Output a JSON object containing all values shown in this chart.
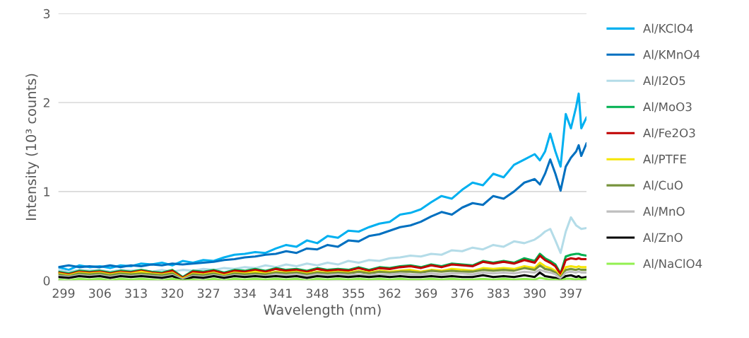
{
  "chart_data": {
    "type": "line",
    "xlabel": "Wavelength (nm)",
    "ylabel": "Intensity (10³ counts)",
    "x": [
      298,
      300,
      302,
      304,
      306,
      308,
      310,
      312,
      314,
      316,
      318,
      320,
      322,
      324,
      326,
      328,
      330,
      332,
      334,
      336,
      338,
      340,
      342,
      344,
      346,
      348,
      350,
      352,
      354,
      356,
      358,
      360,
      362,
      364,
      366,
      368,
      370,
      372,
      374,
      376,
      378,
      380,
      382,
      384,
      386,
      388,
      390,
      391,
      392,
      393,
      394,
      395,
      396,
      397,
      398,
      398.5,
      399,
      400
    ],
    "xlim": [
      298,
      400
    ],
    "xticks": [
      299,
      306,
      313,
      320,
      327,
      334,
      341,
      348,
      355,
      362,
      369,
      376,
      383,
      390,
      397
    ],
    "ylim": [
      0,
      3
    ],
    "yticks": [
      0,
      1,
      2,
      3
    ],
    "grid": "y",
    "legend": "right",
    "marker": "none",
    "line_style": "solid",
    "series": [
      {
        "name": "Al/KClO4",
        "color": "#00b0f0",
        "values": [
          0.15,
          0.12,
          0.17,
          0.15,
          0.16,
          0.14,
          0.17,
          0.16,
          0.19,
          0.18,
          0.2,
          0.17,
          0.22,
          0.2,
          0.23,
          0.22,
          0.26,
          0.29,
          0.3,
          0.32,
          0.31,
          0.36,
          0.4,
          0.38,
          0.45,
          0.42,
          0.5,
          0.48,
          0.56,
          0.55,
          0.6,
          0.64,
          0.66,
          0.74,
          0.76,
          0.8,
          0.88,
          0.95,
          0.92,
          1.02,
          1.1,
          1.07,
          1.2,
          1.16,
          1.3,
          1.36,
          1.42,
          1.35,
          1.45,
          1.65,
          1.45,
          1.28,
          1.87,
          1.71,
          1.95,
          2.1,
          1.71,
          1.83
        ]
      },
      {
        "name": "Al/KMnO4",
        "color": "#0070c0",
        "values": [
          0.15,
          0.17,
          0.15,
          0.16,
          0.15,
          0.17,
          0.15,
          0.17,
          0.16,
          0.18,
          0.17,
          0.19,
          0.18,
          0.19,
          0.2,
          0.21,
          0.23,
          0.24,
          0.26,
          0.27,
          0.29,
          0.3,
          0.33,
          0.31,
          0.36,
          0.35,
          0.4,
          0.38,
          0.45,
          0.44,
          0.5,
          0.52,
          0.56,
          0.6,
          0.62,
          0.66,
          0.72,
          0.77,
          0.74,
          0.82,
          0.87,
          0.85,
          0.95,
          0.92,
          1.0,
          1.1,
          1.14,
          1.08,
          1.2,
          1.36,
          1.2,
          1.01,
          1.28,
          1.38,
          1.45,
          1.52,
          1.4,
          1.54
        ]
      },
      {
        "name": "Al/I2O5",
        "color": "#b4dce8",
        "values": [
          0.12,
          0.1,
          0.12,
          0.11,
          0.12,
          0.1,
          0.12,
          0.11,
          0.12,
          0.1,
          0.12,
          0.1,
          0.12,
          0.11,
          0.13,
          0.12,
          0.14,
          0.13,
          0.15,
          0.14,
          0.17,
          0.15,
          0.18,
          0.16,
          0.19,
          0.17,
          0.2,
          0.18,
          0.22,
          0.2,
          0.23,
          0.22,
          0.25,
          0.26,
          0.28,
          0.27,
          0.3,
          0.29,
          0.34,
          0.33,
          0.37,
          0.35,
          0.4,
          0.38,
          0.44,
          0.42,
          0.46,
          0.5,
          0.55,
          0.58,
          0.45,
          0.31,
          0.55,
          0.71,
          0.62,
          0.6,
          0.58,
          0.59
        ]
      },
      {
        "name": "Al/MoO3",
        "color": "#00b050",
        "values": [
          0.1,
          0.08,
          0.11,
          0.1,
          0.11,
          0.09,
          0.11,
          0.1,
          0.12,
          0.1,
          0.09,
          0.12,
          0.04,
          0.11,
          0.1,
          0.12,
          0.09,
          0.12,
          0.11,
          0.13,
          0.11,
          0.14,
          0.12,
          0.13,
          0.11,
          0.14,
          0.12,
          0.13,
          0.12,
          0.15,
          0.12,
          0.15,
          0.14,
          0.16,
          0.17,
          0.15,
          0.18,
          0.16,
          0.19,
          0.18,
          0.17,
          0.22,
          0.2,
          0.22,
          0.2,
          0.25,
          0.22,
          0.3,
          0.25,
          0.22,
          0.18,
          0.08,
          0.27,
          0.29,
          0.3,
          0.3,
          0.29,
          0.28
        ]
      },
      {
        "name": "Al/Fe2O3",
        "color": "#c00000",
        "values": [
          0.09,
          0.07,
          0.1,
          0.09,
          0.1,
          0.08,
          0.1,
          0.09,
          0.11,
          0.09,
          0.08,
          0.11,
          0.03,
          0.1,
          0.09,
          0.11,
          0.08,
          0.11,
          0.1,
          0.12,
          0.1,
          0.13,
          0.11,
          0.12,
          0.1,
          0.13,
          0.11,
          0.12,
          0.11,
          0.14,
          0.11,
          0.14,
          0.13,
          0.15,
          0.16,
          0.14,
          0.17,
          0.15,
          0.18,
          0.17,
          0.16,
          0.21,
          0.19,
          0.21,
          0.19,
          0.23,
          0.2,
          0.28,
          0.23,
          0.2,
          0.16,
          0.07,
          0.23,
          0.25,
          0.24,
          0.25,
          0.24,
          0.24
        ]
      },
      {
        "name": "Al/PTFE",
        "color": "#f5e600",
        "values": [
          0.08,
          0.06,
          0.09,
          0.08,
          0.09,
          0.07,
          0.09,
          0.08,
          0.1,
          0.08,
          0.07,
          0.09,
          0.02,
          0.08,
          0.07,
          0.09,
          0.06,
          0.09,
          0.08,
          0.1,
          0.08,
          0.1,
          0.09,
          0.1,
          0.08,
          0.1,
          0.09,
          0.1,
          0.09,
          0.11,
          0.09,
          0.11,
          0.1,
          0.11,
          0.12,
          0.1,
          0.12,
          0.11,
          0.13,
          0.12,
          0.11,
          0.14,
          0.13,
          0.14,
          0.13,
          0.16,
          0.14,
          0.2,
          0.16,
          0.14,
          0.11,
          0.04,
          0.15,
          0.16,
          0.15,
          0.16,
          0.15,
          0.15
        ]
      },
      {
        "name": "Al/CuO",
        "color": "#77933c",
        "values": [
          0.07,
          0.05,
          0.08,
          0.07,
          0.08,
          0.06,
          0.08,
          0.07,
          0.08,
          0.07,
          0.06,
          0.08,
          0.01,
          0.07,
          0.06,
          0.08,
          0.05,
          0.08,
          0.07,
          0.08,
          0.07,
          0.09,
          0.08,
          0.09,
          0.07,
          0.09,
          0.08,
          0.09,
          0.08,
          0.1,
          0.08,
          0.1,
          0.09,
          0.1,
          0.1,
          0.09,
          0.11,
          0.1,
          0.11,
          0.1,
          0.1,
          0.12,
          0.11,
          0.12,
          0.11,
          0.14,
          0.12,
          0.17,
          0.13,
          0.12,
          0.09,
          0.03,
          0.12,
          0.13,
          0.12,
          0.13,
          0.12,
          0.12
        ]
      },
      {
        "name": "Al/MnO",
        "color": "#bfbfbf",
        "values": [
          0.05,
          0.04,
          0.06,
          0.05,
          0.06,
          0.04,
          0.06,
          0.05,
          0.06,
          0.05,
          0.04,
          0.06,
          0.01,
          0.05,
          0.04,
          0.06,
          0.04,
          0.06,
          0.05,
          0.06,
          0.05,
          0.07,
          0.06,
          0.07,
          0.05,
          0.07,
          0.06,
          0.07,
          0.06,
          0.07,
          0.06,
          0.07,
          0.07,
          0.08,
          0.07,
          0.07,
          0.08,
          0.07,
          0.08,
          0.08,
          0.07,
          0.09,
          0.08,
          0.09,
          0.08,
          0.1,
          0.09,
          0.12,
          0.1,
          0.09,
          0.07,
          0.02,
          0.09,
          0.1,
          0.09,
          0.1,
          0.09,
          0.09
        ]
      },
      {
        "name": "Al/ZnO",
        "color": "#000000",
        "values": [
          0.04,
          0.03,
          0.05,
          0.04,
          0.05,
          0.03,
          0.05,
          0.04,
          0.05,
          0.04,
          0.03,
          0.05,
          0.0,
          0.04,
          0.03,
          0.05,
          0.03,
          0.05,
          0.04,
          0.05,
          0.04,
          0.05,
          0.04,
          0.05,
          0.03,
          0.05,
          0.04,
          0.05,
          0.04,
          0.05,
          0.04,
          0.05,
          0.04,
          0.05,
          0.04,
          0.04,
          0.05,
          0.04,
          0.05,
          0.04,
          0.04,
          0.06,
          0.04,
          0.05,
          0.04,
          0.06,
          0.04,
          0.09,
          0.05,
          0.04,
          0.03,
          0.0,
          0.05,
          0.06,
          0.04,
          0.05,
          0.03,
          0.04
        ]
      },
      {
        "name": "Al/NaClO4",
        "color": "#92f050",
        "values": [
          0.01,
          0.0,
          0.02,
          0.01,
          0.02,
          0.0,
          0.02,
          0.01,
          0.02,
          0.01,
          0.0,
          0.02,
          0.0,
          0.01,
          0.0,
          0.02,
          0.0,
          0.02,
          0.01,
          0.02,
          0.01,
          0.02,
          0.01,
          0.02,
          0.0,
          0.02,
          0.01,
          0.02,
          0.01,
          0.02,
          0.01,
          0.02,
          0.01,
          0.02,
          0.01,
          0.01,
          0.02,
          0.01,
          0.02,
          0.01,
          0.01,
          0.02,
          0.01,
          0.02,
          0.01,
          0.02,
          0.01,
          0.03,
          0.02,
          0.01,
          0.01,
          0.0,
          0.02,
          0.02,
          0.01,
          0.02,
          0.01,
          0.02
        ]
      }
    ]
  }
}
